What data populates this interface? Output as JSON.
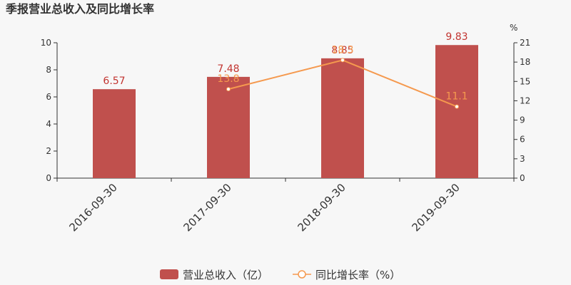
{
  "title": "季报营业总收入及同比增长率",
  "chart_data": {
    "type": "bar",
    "categories": [
      "2016-09-30",
      "2017-09-30",
      "2018-09-30",
      "2019-09-30"
    ],
    "series": [
      {
        "name": "营业总收入（亿）",
        "type": "bar",
        "axis": "left",
        "values": [
          6.57,
          7.48,
          8.85,
          9.83
        ],
        "labels": [
          "6.57",
          "7.48",
          "8.85",
          "9.83"
        ]
      },
      {
        "name": "同比增长率（%）",
        "type": "line",
        "axis": "right",
        "values": [
          null,
          13.8,
          18.3,
          11.1
        ],
        "labels": [
          "",
          "13.8",
          "18.3",
          "11.1"
        ]
      }
    ],
    "y_left": {
      "min": 0,
      "max": 10,
      "ticks": [
        0,
        2,
        4,
        6,
        8,
        10
      ]
    },
    "y_right": {
      "min": 0,
      "max": 21,
      "ticks": [
        0,
        3,
        6,
        9,
        12,
        15,
        18,
        21
      ],
      "unit": "%"
    },
    "legend_position": "bottom-center",
    "grid": false,
    "colors": {
      "bar": "#c0504d",
      "line": "#f5994e",
      "label_bar": "#c23531"
    }
  }
}
